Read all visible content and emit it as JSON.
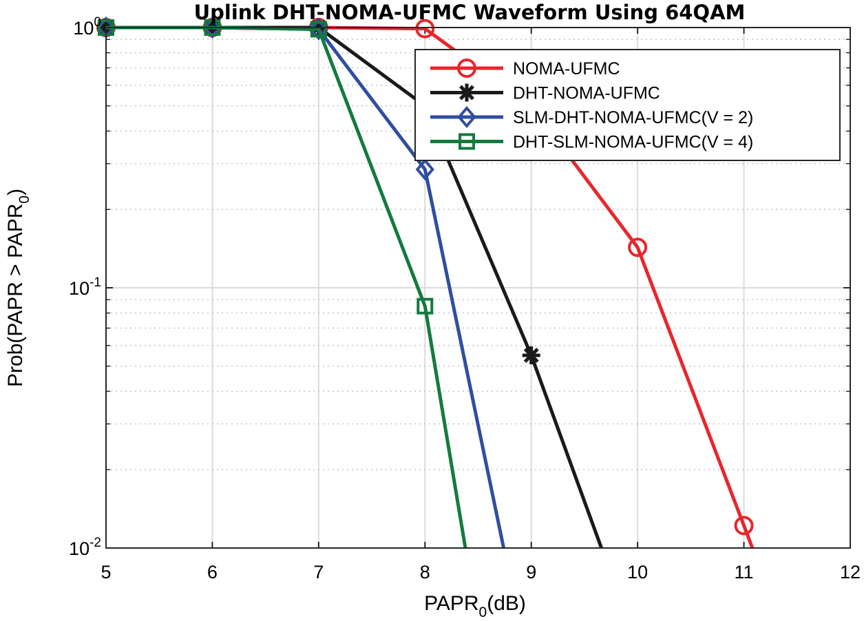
{
  "chart_data": {
    "type": "line",
    "title": "Uplink DHT-NOMA-UFMC Waveform Using 64QAM",
    "xlabel": {
      "main": "PAPR",
      "sub": "0",
      "rest": "(dB)"
    },
    "ylabel": {
      "main": "Prob(PAPR > PAPR",
      "sub": "0",
      "rest": ")"
    },
    "x_ticks": [
      "5",
      "6",
      "7",
      "8",
      "9",
      "10",
      "11",
      "12"
    ],
    "y_ticks": [
      {
        "value": 1,
        "base": "10",
        "exp": "0"
      },
      {
        "value": 0.1,
        "base": "10",
        "exp": "-1"
      },
      {
        "value": 0.01,
        "base": "10",
        "exp": "-2"
      }
    ],
    "xlim": [
      5,
      12
    ],
    "ylim": [
      0.01,
      1
    ],
    "yscale": "log",
    "grid": true,
    "legend_position": "top-right",
    "series": [
      {
        "name": "NOMA-UFMC",
        "color": "#e8262c",
        "marker": "circle",
        "points": [
          [
            5,
            1.0
          ],
          [
            6,
            1.0
          ],
          [
            7,
            1.0
          ],
          [
            8,
            0.99
          ],
          [
            9,
            0.5
          ],
          [
            10,
            0.143
          ],
          [
            11,
            0.0122
          ],
          [
            11.08,
            0.01
          ]
        ],
        "marked": [
          0,
          1,
          2,
          3,
          4,
          5,
          6
        ]
      },
      {
        "name": "DHT-NOMA-UFMC",
        "color": "#1a1a1a",
        "marker": "asterisk",
        "points": [
          [
            5,
            1.0
          ],
          [
            6,
            1.0
          ],
          [
            7,
            1.0
          ],
          [
            8,
            0.5
          ],
          [
            9,
            0.055
          ],
          [
            9.66,
            0.01
          ]
        ],
        "marked": [
          0,
          1,
          2,
          3,
          4
        ]
      },
      {
        "name": "SLM-DHT-NOMA-UFMC(V = 2)",
        "color": "#2f4ea1",
        "marker": "diamond",
        "points": [
          [
            5,
            1.0
          ],
          [
            6,
            1.0
          ],
          [
            7,
            0.985
          ],
          [
            8,
            0.285
          ],
          [
            8.74,
            0.01
          ]
        ],
        "marked": [
          0,
          1,
          2,
          3
        ]
      },
      {
        "name": "DHT-SLM-NOMA-UFMC(V = 4)",
        "color": "#137a3e",
        "marker": "square",
        "points": [
          [
            5,
            1.0
          ],
          [
            6,
            1.0
          ],
          [
            7,
            0.985
          ],
          [
            8,
            0.085
          ],
          [
            8.38,
            0.01
          ]
        ],
        "marked": [
          0,
          1,
          2,
          3
        ]
      }
    ]
  }
}
